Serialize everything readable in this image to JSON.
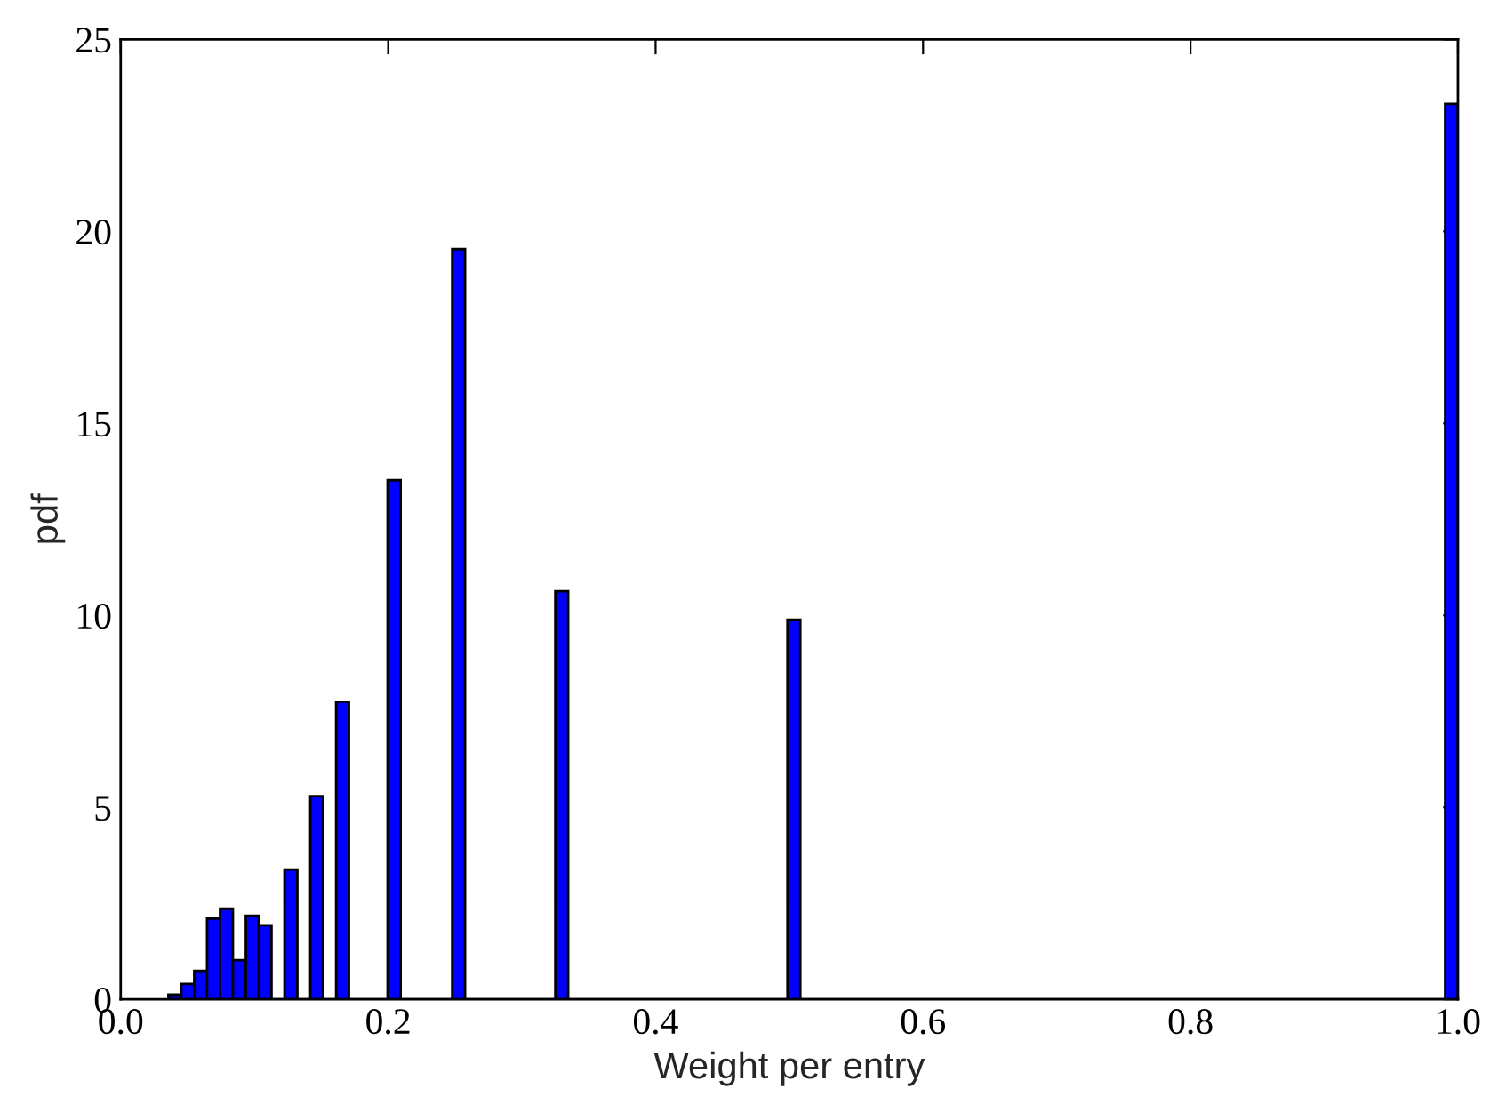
{
  "chart_data": {
    "type": "histogram",
    "xlabel": "Weight per entry",
    "ylabel": "pdf",
    "color": "#0000ff",
    "bins": [
      0.0357,
      0.0453,
      0.055,
      0.0646,
      0.0743,
      0.0839,
      0.0936,
      0.1032,
      0.1128,
      0.1225,
      0.1321,
      0.1418,
      0.1514,
      0.1611,
      0.1707,
      0.1803,
      0.19,
      0.1996,
      0.2093,
      0.2189,
      0.2286,
      0.2382,
      0.2479,
      0.2575,
      0.2671,
      0.2768,
      0.2864,
      0.2961,
      0.3057,
      0.3153,
      0.325,
      0.3346,
      0.3443,
      0.3539,
      0.3636,
      0.3732,
      0.3828,
      0.3925,
      0.4021,
      0.4118,
      0.4214,
      0.4311,
      0.4407,
      0.4503,
      0.46,
      0.4696,
      0.4793,
      0.4889,
      0.4986,
      0.5082,
      0.5179,
      0.5275,
      0.5371,
      0.5468,
      0.5564,
      0.5661,
      0.5757,
      0.5854,
      0.595,
      0.6046,
      0.6143,
      0.6239,
      0.6336,
      0.6432,
      0.6529,
      0.6625,
      0.6721,
      0.6818,
      0.6914,
      0.7011,
      0.7107,
      0.7204,
      0.73,
      0.7396,
      0.7493,
      0.7589,
      0.7686,
      0.7782,
      0.7879,
      0.7975,
      0.8071,
      0.8168,
      0.8264,
      0.8361,
      0.8457,
      0.8554,
      0.865,
      0.8746,
      0.8843,
      0.8939,
      0.9036,
      0.9132,
      0.9229,
      0.9325,
      0.9421,
      0.9518,
      0.9614,
      0.9711,
      0.9807,
      0.9904,
      1.0
    ],
    "values": [
      0.12,
      0.4,
      0.74,
      2.1,
      2.36,
      1.02,
      2.18,
      1.93,
      0,
      3.38,
      0,
      5.29,
      0,
      7.75,
      0,
      0,
      0,
      13.52,
      0,
      0,
      0,
      0,
      19.54,
      0,
      0,
      0,
      0,
      0,
      0,
      0,
      10.63,
      0,
      0,
      0,
      0,
      0,
      0,
      0,
      0,
      0,
      0,
      0,
      0,
      0,
      0,
      0,
      0,
      0,
      9.89,
      0,
      0,
      0,
      0,
      0,
      0,
      0,
      0,
      0,
      0,
      0,
      0,
      0,
      0,
      0,
      0,
      0,
      0,
      0,
      0,
      0,
      0,
      0,
      0,
      0,
      0,
      0,
      0,
      0,
      0,
      0,
      0,
      0,
      0,
      0,
      0,
      0,
      0,
      0,
      0,
      0,
      0,
      0,
      0,
      0,
      0,
      0,
      0,
      0,
      0,
      23.32
    ],
    "xlim": [
      0,
      1.0
    ],
    "xticks": [
      {
        "value": 0,
        "label": "0.0"
      },
      0.2,
      0.4,
      0.6,
      0.8,
      {
        "value": 1.0,
        "label": "1.0"
      }
    ],
    "ylim": [
      0,
      25
    ],
    "yticks": [
      0,
      5,
      10,
      15,
      20,
      25
    ],
    "grid": false
  }
}
